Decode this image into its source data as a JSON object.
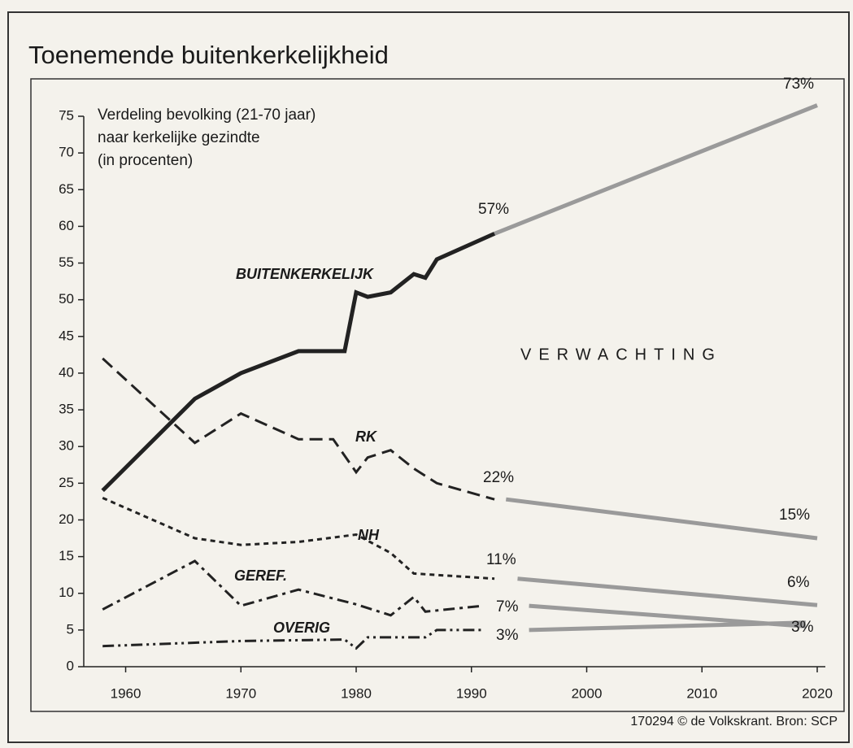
{
  "chart_data": {
    "type": "line",
    "title": "Toenemende buitenkerkelijkheid",
    "subtitle": [
      "Verdeling bevolking (21-70 jaar)",
      "naar kerkelijke gezindte",
      "(in procenten)"
    ],
    "xlim": [
      1957,
      2020
    ],
    "xticks": [
      1960,
      1970,
      1980,
      1990,
      2000,
      2010,
      2020
    ],
    "ylim": [
      0,
      75
    ],
    "yticks": [
      0,
      5,
      10,
      15,
      20,
      25,
      30,
      35,
      40,
      45,
      50,
      55,
      60,
      65,
      70,
      75
    ],
    "projection_color": "#9a9a9a",
    "projection_label": "VERWACHTING",
    "series": [
      {
        "name": "BUITENKERKELIJK",
        "color": "#222222",
        "dash": "solid",
        "x": [
          1958,
          1966,
          1970,
          1975,
          1979,
          1980,
          1981,
          1983,
          1985,
          1986,
          1987,
          1992
        ],
        "values": [
          24,
          36.5,
          40,
          43,
          43,
          51,
          50.4,
          51,
          53.5,
          53,
          55.5,
          59
        ],
        "projection": {
          "x": [
            1992,
            2020
          ],
          "values": [
            59,
            76.5
          ]
        }
      },
      {
        "name": "RK",
        "color": "#222222",
        "dash": "dashed",
        "x": [
          1958,
          1966,
          1970,
          1975,
          1978,
          1980,
          1981,
          1983,
          1985,
          1987,
          1992
        ],
        "values": [
          42,
          30.5,
          34.5,
          31,
          31,
          26.5,
          28.5,
          29.5,
          27,
          25,
          22.8
        ],
        "projection": {
          "x": [
            1993,
            2020
          ],
          "values": [
            22.8,
            17.5
          ]
        }
      },
      {
        "name": "NH",
        "color": "#222222",
        "dash": "dotted",
        "x": [
          1958,
          1966,
          1970,
          1975,
          1980,
          1983,
          1985,
          1987,
          1992
        ],
        "values": [
          23,
          17.5,
          16.6,
          17,
          18,
          15.5,
          12.7,
          12.5,
          12
        ],
        "projection": {
          "x": [
            1994,
            2020
          ],
          "values": [
            12,
            8.4
          ]
        }
      },
      {
        "name": "GEREF.",
        "color": "#222222",
        "dash": "dashdot",
        "x": [
          1958,
          1966,
          1970,
          1975,
          1980,
          1983,
          1985,
          1986,
          1991
        ],
        "values": [
          7.8,
          14.4,
          8.3,
          10.5,
          8.5,
          7,
          9.5,
          7.5,
          8.3
        ],
        "projection": {
          "x": [
            1995,
            2019
          ],
          "values": [
            8.3,
            5.5
          ]
        }
      },
      {
        "name": "OVERIG",
        "color": "#222222",
        "dash": "dashdotdot",
        "x": [
          1958,
          1970,
          1979,
          1980,
          1981,
          1986,
          1987,
          1991
        ],
        "values": [
          2.8,
          3.5,
          3.7,
          2.5,
          4,
          4,
          5,
          5
        ],
        "projection": {
          "x": [
            1995,
            2019
          ],
          "values": [
            5,
            6
          ]
        }
      }
    ],
    "annotations": [
      "57%",
      "73%",
      "22%",
      "15%",
      "11%",
      "6%",
      "7%",
      "3%",
      "3%"
    ],
    "source": "170294 © de Volkskrant. Bron: SCP"
  }
}
